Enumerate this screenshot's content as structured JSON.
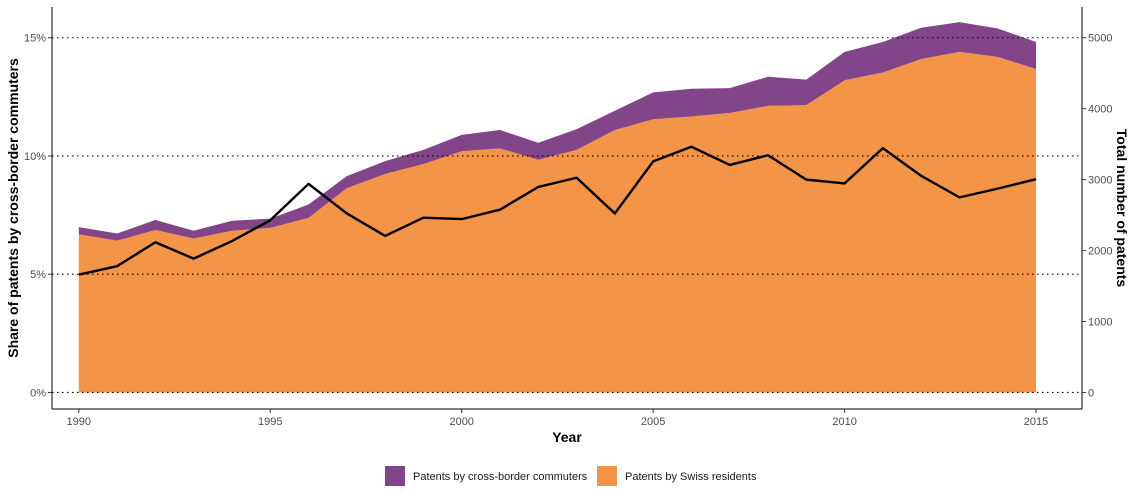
{
  "chart_data": {
    "type": "area",
    "x": [
      1990,
      1991,
      1992,
      1993,
      1994,
      1995,
      1996,
      1997,
      1998,
      1999,
      2000,
      2001,
      2002,
      2003,
      2004,
      2005,
      2006,
      2007,
      2008,
      2009,
      2010,
      2011,
      2012,
      2013,
      2014,
      2015
    ],
    "xlabel": "Year",
    "ylabel_left": "Share of patents by cross-border commuters",
    "ylabel_right": "Total number of patents",
    "x_ticks": [
      1990,
      1995,
      2000,
      2005,
      2010,
      2015
    ],
    "y_left_ticks": [
      {
        "value": 0,
        "label": "0%"
      },
      {
        "value": 5,
        "label": "5%"
      },
      {
        "value": 10,
        "label": "10%"
      },
      {
        "value": 15,
        "label": "15%"
      }
    ],
    "y_right_ticks": [
      {
        "value": 0,
        "label": "0"
      },
      {
        "value": 1000,
        "label": "1000"
      },
      {
        "value": 2000,
        "label": "2000"
      },
      {
        "value": 3000,
        "label": "3000"
      },
      {
        "value": 4000,
        "label": "4000"
      },
      {
        "value": 5000,
        "label": "5000"
      }
    ],
    "xlim": [
      1989.3,
      2016.2
    ],
    "ylim_left": [
      -0.7,
      16.3
    ],
    "ylim_right": [
      -233,
      5433
    ],
    "series": [
      {
        "name": "Patents by Swiss residents",
        "color": "#f39446",
        "values": [
          2230,
          2140,
          2290,
          2170,
          2280,
          2320,
          2460,
          2880,
          3080,
          3220,
          3400,
          3440,
          3280,
          3420,
          3700,
          3850,
          3890,
          3940,
          4040,
          4050,
          4400,
          4510,
          4700,
          4800,
          4730,
          4560
        ]
      },
      {
        "name": "Patents by cross-border commuters",
        "color": "#834589",
        "values": [
          100,
          100,
          140,
          110,
          140,
          130,
          190,
          170,
          180,
          200,
          230,
          260,
          240,
          290,
          270,
          380,
          390,
          350,
          410,
          360,
          400,
          430,
          440,
          420,
          400,
          380
        ]
      }
    ],
    "line": {
      "name": "Share of patents by cross-border commuters",
      "color": "#000000",
      "axis": "left",
      "values": [
        4.98,
        5.34,
        6.35,
        5.66,
        6.4,
        7.28,
        8.82,
        7.57,
        6.62,
        7.39,
        7.33,
        7.73,
        8.69,
        9.08,
        7.57,
        9.77,
        10.39,
        9.62,
        10.03,
        9.0,
        8.84,
        10.33,
        9.16,
        8.25,
        8.62,
        9.02
      ]
    },
    "grid": "horizontal dotted at left-axis ticks",
    "legend": {
      "position": "bottom",
      "items": [
        {
          "label": "Patents by cross-border commuters",
          "color": "#834589"
        },
        {
          "label": "Patents by Swiss residents",
          "color": "#f39446"
        }
      ]
    }
  }
}
